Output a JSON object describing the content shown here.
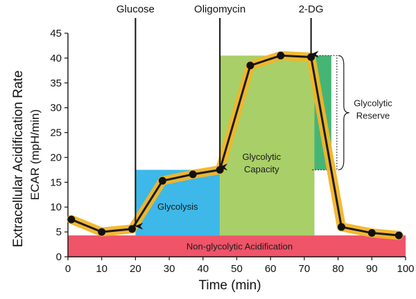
{
  "chart_data": {
    "type": "line",
    "xlabel": "Time (min)",
    "ylabel_line1": "Extracellular Acidification Rate",
    "ylabel_line2": "ECAR (mpH/min)",
    "xlim": [
      0,
      100
    ],
    "ylim": [
      0,
      45
    ],
    "x_ticks": [
      0,
      10,
      20,
      30,
      40,
      50,
      60,
      70,
      80,
      90,
      100
    ],
    "y_ticks": [
      0,
      5,
      10,
      15,
      20,
      25,
      30,
      35,
      40,
      45
    ],
    "grid": false,
    "series": [
      {
        "x": [
          1,
          10,
          19,
          28,
          37,
          45,
          54,
          63,
          72,
          81,
          90,
          98
        ],
        "y": [
          7.5,
          5.0,
          5.6,
          15.3,
          16.6,
          17.5,
          38.5,
          40.5,
          40.2,
          6.0,
          4.8,
          4.3
        ]
      }
    ],
    "regions": [
      {
        "label": "Non-glycolytic Acidification",
        "x": [
          0,
          100
        ],
        "y": [
          0,
          4.3
        ],
        "color": "#ef5468"
      },
      {
        "label": "Glycolysis",
        "x": [
          20,
          45
        ],
        "y": [
          4.3,
          17.5
        ],
        "color": "#3db8e8"
      },
      {
        "label_line1": "Glycolytic",
        "label_line2": "Capacity",
        "x": [
          45,
          73
        ],
        "y": [
          4.3,
          40.5
        ],
        "color": "#a9cf68"
      },
      {
        "label_line1": "Glycolytic",
        "label_line2": "Reserve",
        "x": [
          73,
          78
        ],
        "y": [
          17.5,
          40.5
        ],
        "color": "#45b576"
      }
    ],
    "annotations": [
      {
        "label": "Glucose",
        "x": 20,
        "arrow_to_y": 5.6
      },
      {
        "label": "Oligomycin",
        "x": 45,
        "arrow_to_y": 17.5
      },
      {
        "label": "2-DG",
        "x": 72,
        "arrow_to_y": 40.2
      }
    ],
    "colors": {
      "line": "#1a1a1a",
      "halo": "#f2b528",
      "point": "#111111"
    }
  }
}
